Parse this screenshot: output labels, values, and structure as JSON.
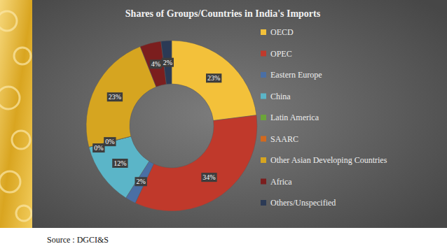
{
  "chart_data": {
    "type": "pie",
    "title": "Shares of Groups/Countries in India's Imports",
    "source": "Source : DGCI&S",
    "categories": [
      "OECD",
      "OPEC",
      "Eastern Europe",
      "China",
      "Latin America",
      "SAARC",
      "Other Asian Developing Countries",
      "Africa",
      "Others/Unspecified"
    ],
    "values": [
      23,
      34,
      2,
      12,
      0,
      0,
      23,
      4,
      2
    ],
    "value_labels": [
      "23%",
      "34%",
      "2%",
      "12%",
      "0%",
      "0%",
      "23%",
      "4%",
      "2%"
    ],
    "colors": [
      "#f3c13a",
      "#c0392b",
      "#4a6fa5",
      "#5bb5c8",
      "#6ba539",
      "#d2691e",
      "#d6a520",
      "#7b1e1e",
      "#2b3a55"
    ],
    "data_labels": true,
    "legend": "right"
  }
}
